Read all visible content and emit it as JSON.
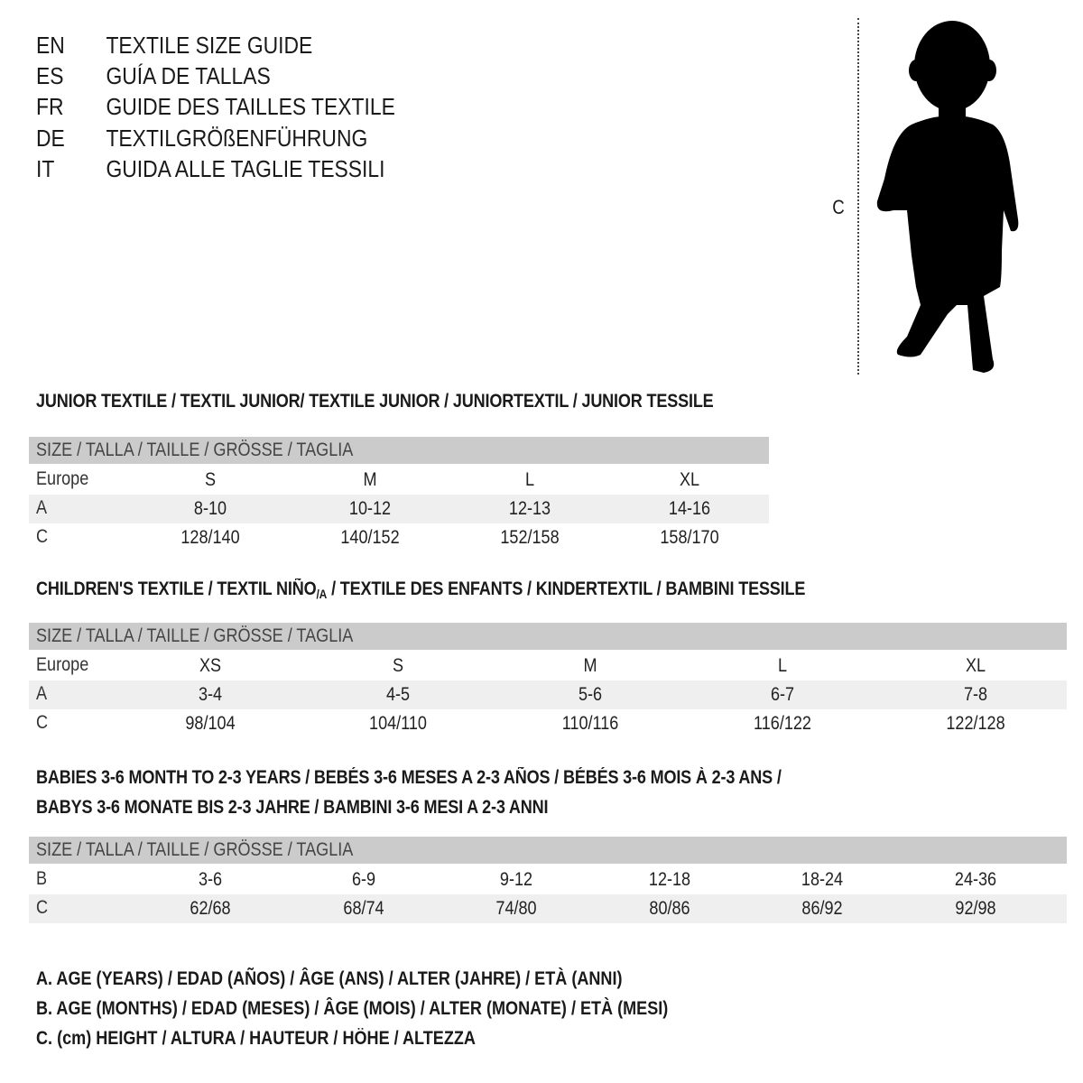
{
  "titles": [
    {
      "code": "EN",
      "text": "TEXTILE SIZE GUIDE"
    },
    {
      "code": "ES",
      "text": "GUÍA DE TALLAS"
    },
    {
      "code": "FR",
      "text": "GUIDE DES TAILLES TEXTILE"
    },
    {
      "code": "DE",
      "text": "TEXTILGRÖßENFÜHRUNG"
    },
    {
      "code": "IT",
      "text": "GUIDA ALLE TAGLIE TESSILI"
    }
  ],
  "figure": {
    "measure_label": "C"
  },
  "junior": {
    "title": "JUNIOR TEXTILE / TEXTIL JUNIOR/ TEXTILE JUNIOR / JUNIORTEXTIL / JUNIOR TESSILE",
    "header": "SIZE / TALLA / TAILLE / GRÖSSE / TAGLIA",
    "rows": [
      {
        "label": "Europe",
        "values": [
          "S",
          "M",
          "L",
          "XL"
        ]
      },
      {
        "label": "A",
        "values": [
          "8-10",
          "10-12",
          "12-13",
          "14-16"
        ]
      },
      {
        "label": "C",
        "values": [
          "128/140",
          "140/152",
          "152/158",
          "158/170"
        ]
      }
    ]
  },
  "children": {
    "title_a": "CHILDREN'S TEXTILE / TEXTIL NIÑO",
    "title_sub": "/A",
    "title_b": " / TEXTILE DES ENFANTS / KINDERTEXTIL / BAMBINI TESSILE",
    "header": "SIZE / TALLA / TAILLE / GRÖSSE / TAGLIA",
    "rows": [
      {
        "label": "Europe",
        "values": [
          "XS",
          "S",
          "M",
          "L",
          "XL"
        ]
      },
      {
        "label": "A",
        "values": [
          "3-4",
          "4-5",
          "5-6",
          "6-7",
          "7-8"
        ]
      },
      {
        "label": "C",
        "values": [
          "98/104",
          "104/110",
          "110/116",
          "116/122",
          "122/128"
        ]
      }
    ]
  },
  "babies": {
    "title_line1": "BABIES 3-6 MONTH TO 2-3 YEARS / BEBÉS 3-6 MESES A 2-3 AÑOS / BÉBÉS 3-6 MOIS À 2-3 ANS /",
    "title_line2": "BABYS 3-6 MONATE BIS 2-3 JAHRE / BAMBINI 3-6 MESI A 2-3 ANNI",
    "header": "SIZE / TALLA / TAILLE / GRÖSSE / TAGLIA",
    "rows": [
      {
        "label": "B",
        "values": [
          "3-6",
          "6-9",
          "9-12",
          "12-18",
          "18-24",
          "24-36"
        ]
      },
      {
        "label": "C",
        "values": [
          "62/68",
          "68/74",
          "74/80",
          "80/86",
          "86/92",
          "92/98"
        ]
      }
    ]
  },
  "legend": [
    "A. AGE (YEARS) / EDAD (AÑOS) / ÂGE (ANS) / ALTER (JAHRE) / ETÀ (ANNI)",
    "B. AGE (MONTHS) / EDAD (MESES) / ÂGE (MOIS) / ALTER (MONATE) / ETÀ (MESI)",
    "C. (cm) HEIGHT / ALTURA / HAUTEUR / HÖHE / ALTEZZA"
  ]
}
